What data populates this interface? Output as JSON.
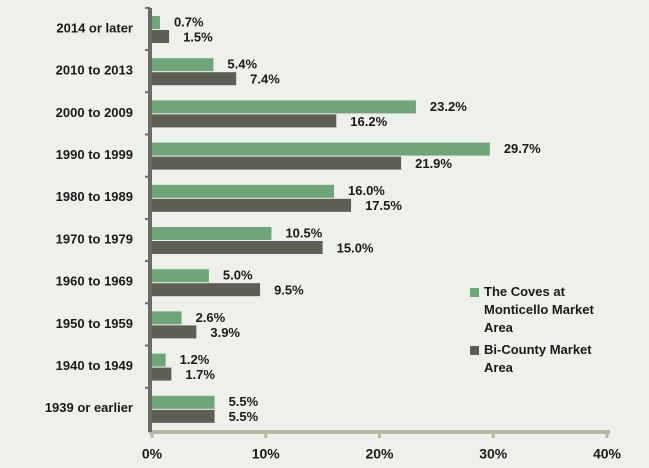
{
  "chart_data": {
    "type": "bar",
    "orientation": "horizontal",
    "categories": [
      "2014 or later",
      "2010 to 2013",
      "2000 to 2009",
      "1990 to 1999",
      "1980 to 1989",
      "1970 to 1979",
      "1960 to 1969",
      "1950 to 1959",
      "1940 to 1949",
      "1939 or earlier"
    ],
    "series": [
      {
        "name": "The Coves at Monticello Market Area",
        "color": "#6fa578",
        "values": [
          0.7,
          5.4,
          23.2,
          29.7,
          16.0,
          10.5,
          5.0,
          2.6,
          1.2,
          5.5
        ],
        "value_labels": [
          "0.7%",
          "5.4%",
          "23.2%",
          "29.7%",
          "16.0%",
          "10.5%",
          "5.0%",
          "2.6%",
          "1.2%",
          "5.5%"
        ]
      },
      {
        "name": "Bi-County Market Area",
        "color": "#5e5e53",
        "values": [
          1.5,
          7.4,
          16.2,
          21.9,
          17.5,
          15.0,
          9.5,
          3.9,
          1.7,
          5.5
        ],
        "value_labels": [
          "1.5%",
          "7.4%",
          "16.2%",
          "21.9%",
          "17.5%",
          "15.0%",
          "9.5%",
          "3.9%",
          "1.7%",
          "5.5%"
        ]
      }
    ],
    "xlim": [
      0,
      40
    ],
    "xticks": [
      {
        "value": 0,
        "label": "0%"
      },
      {
        "value": 10,
        "label": "10%"
      },
      {
        "value": 20,
        "label": "20%"
      },
      {
        "value": 30,
        "label": "30%"
      },
      {
        "value": 40,
        "label": "40%"
      }
    ],
    "legend": "right"
  }
}
